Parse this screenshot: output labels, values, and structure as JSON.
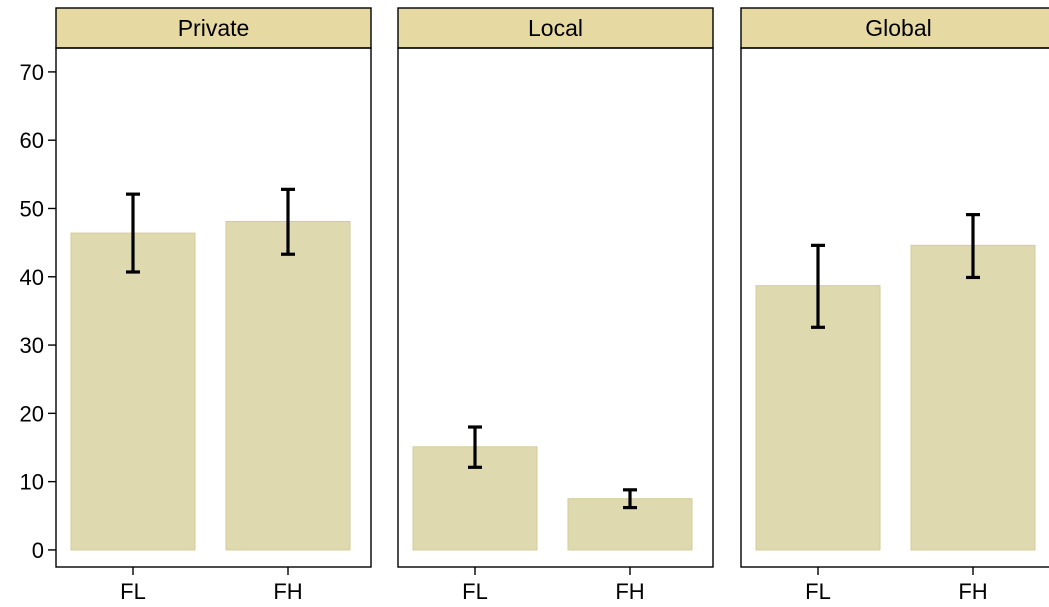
{
  "chart_data": {
    "type": "bar",
    "panels": [
      {
        "title": "Private",
        "categories": [
          "FL",
          "FH"
        ],
        "values": [
          46.4,
          48.1
        ],
        "errors": [
          [
            40.7,
            52.1
          ],
          [
            43.3,
            52.8
          ]
        ]
      },
      {
        "title": "Local",
        "categories": [
          "FL",
          "FH"
        ],
        "values": [
          15.1,
          7.5
        ],
        "errors": [
          [
            12.1,
            18.0
          ],
          [
            6.2,
            8.8
          ]
        ]
      },
      {
        "title": "Global",
        "categories": [
          "FL",
          "FH"
        ],
        "values": [
          38.7,
          44.6
        ],
        "errors": [
          [
            32.6,
            44.6
          ],
          [
            39.9,
            49.1
          ]
        ]
      }
    ],
    "yticks": [
      0,
      10,
      20,
      30,
      40,
      50,
      60,
      70
    ],
    "ylim": [
      -2.5,
      73.5
    ],
    "xlabel": "",
    "ylabel": "",
    "grid": false,
    "colors": {
      "bar_fill": "#dfd9b0",
      "bar_stroke": "#d4cc98",
      "strip_fill": "#e6d9a2",
      "error_bar": "#000000"
    }
  }
}
